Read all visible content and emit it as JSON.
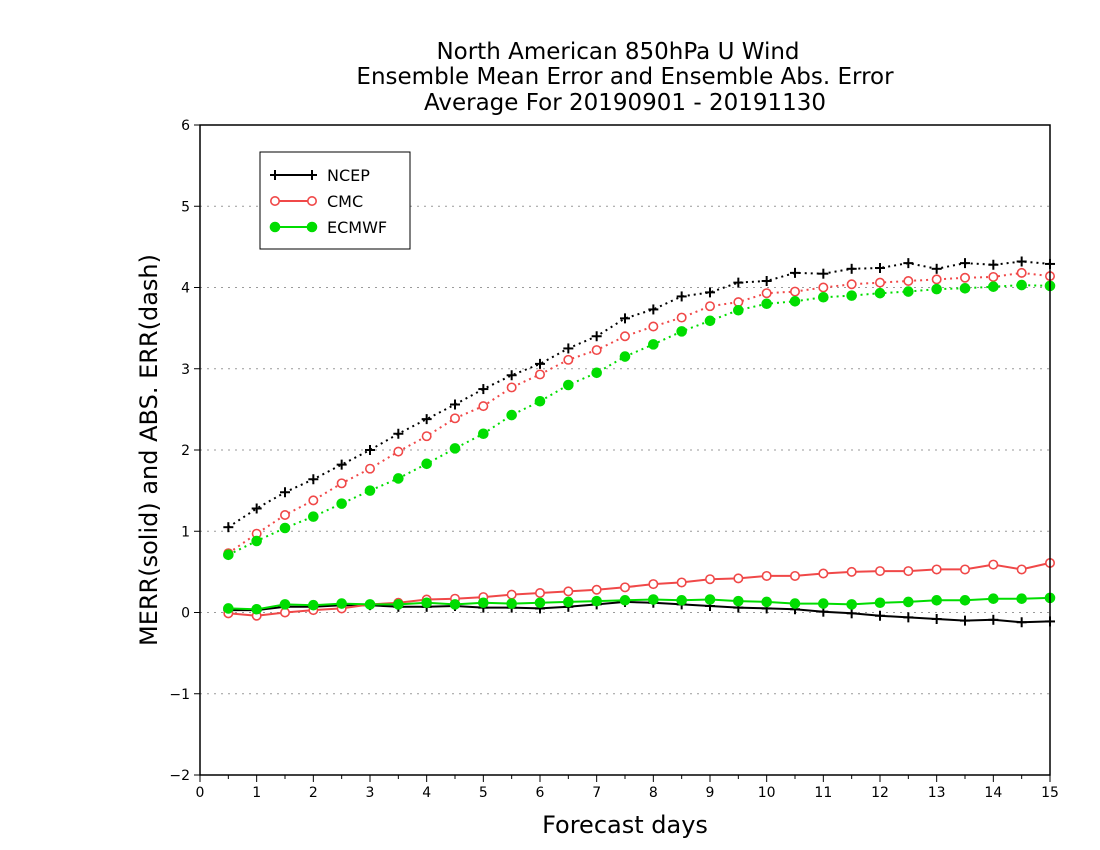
{
  "chart_data": {
    "type": "line",
    "title_lines": [
      "North American 850hPa U Wind",
      "Ensemble Mean Error and Ensemble Abs. Error",
      "Average For 20190901 - 20191130"
    ],
    "xlabel": "Forecast days",
    "ylabel": "MERR(solid) and ABS. ERR(dash)",
    "xlim": [
      0,
      15
    ],
    "ylim": [
      -2,
      6
    ],
    "x_ticks": [
      "0",
      "1",
      "2",
      "3",
      "4",
      "5",
      "6",
      "7",
      "8",
      "9",
      "10",
      "11",
      "12",
      "13",
      "14",
      "15"
    ],
    "y_ticks": [
      "-2",
      "-1",
      "0",
      "1",
      "2",
      "3",
      "4",
      "5",
      "6"
    ],
    "x": [
      0.5,
      1,
      1.5,
      2,
      2.5,
      3,
      3.5,
      4,
      4.5,
      5,
      5.5,
      6,
      6.5,
      7,
      7.5,
      8,
      8.5,
      9,
      9.5,
      10,
      10.5,
      11,
      11.5,
      12,
      12.5,
      13,
      13.5,
      14,
      14.5,
      15
    ],
    "legend_position": "top-left",
    "series": [
      {
        "name": "NCEP",
        "color": "#000000",
        "marker": "plus",
        "merr": [
          0.03,
          0.03,
          0.07,
          0.07,
          0.09,
          0.09,
          0.07,
          0.07,
          0.08,
          0.06,
          0.06,
          0.05,
          0.07,
          0.1,
          0.13,
          0.12,
          0.1,
          0.08,
          0.06,
          0.05,
          0.04,
          0.01,
          -0.01,
          -0.04,
          -0.06,
          -0.08,
          -0.1,
          -0.09,
          -0.12,
          -0.11
        ],
        "abs_err": [
          1.05,
          1.28,
          1.48,
          1.64,
          1.82,
          2.0,
          2.2,
          2.38,
          2.56,
          2.75,
          2.92,
          3.06,
          3.25,
          3.4,
          3.62,
          3.73,
          3.89,
          3.94,
          4.06,
          4.08,
          4.18,
          4.17,
          4.23,
          4.24,
          4.3,
          4.23,
          4.3,
          4.28,
          4.32,
          4.29
        ]
      },
      {
        "name": "CMC",
        "color": "#f04848",
        "marker": "open-circle",
        "merr": [
          -0.01,
          -0.04,
          0.0,
          0.03,
          0.05,
          0.1,
          0.12,
          0.16,
          0.17,
          0.19,
          0.22,
          0.24,
          0.26,
          0.28,
          0.31,
          0.35,
          0.37,
          0.41,
          0.42,
          0.45,
          0.45,
          0.48,
          0.5,
          0.51,
          0.51,
          0.53,
          0.53,
          0.59,
          0.53,
          0.61
        ],
        "abs_err": [
          0.73,
          0.97,
          1.2,
          1.38,
          1.59,
          1.77,
          1.98,
          2.17,
          2.39,
          2.54,
          2.77,
          2.93,
          3.11,
          3.23,
          3.4,
          3.52,
          3.63,
          3.77,
          3.82,
          3.93,
          3.95,
          4.0,
          4.04,
          4.06,
          4.08,
          4.1,
          4.12,
          4.13,
          4.18,
          4.14
        ]
      },
      {
        "name": "ECMWF",
        "color": "#00dd00",
        "marker": "filled-circle",
        "merr": [
          0.05,
          0.04,
          0.1,
          0.09,
          0.11,
          0.1,
          0.1,
          0.12,
          0.1,
          0.12,
          0.11,
          0.12,
          0.13,
          0.14,
          0.15,
          0.16,
          0.15,
          0.16,
          0.14,
          0.13,
          0.11,
          0.11,
          0.1,
          0.12,
          0.13,
          0.15,
          0.15,
          0.17,
          0.17,
          0.18
        ],
        "abs_err": [
          0.71,
          0.88,
          1.04,
          1.18,
          1.34,
          1.5,
          1.65,
          1.83,
          2.02,
          2.2,
          2.43,
          2.6,
          2.8,
          2.95,
          3.15,
          3.3,
          3.46,
          3.59,
          3.72,
          3.8,
          3.83,
          3.88,
          3.9,
          3.93,
          3.95,
          3.98,
          3.99,
          4.01,
          4.03,
          4.02
        ]
      }
    ]
  }
}
